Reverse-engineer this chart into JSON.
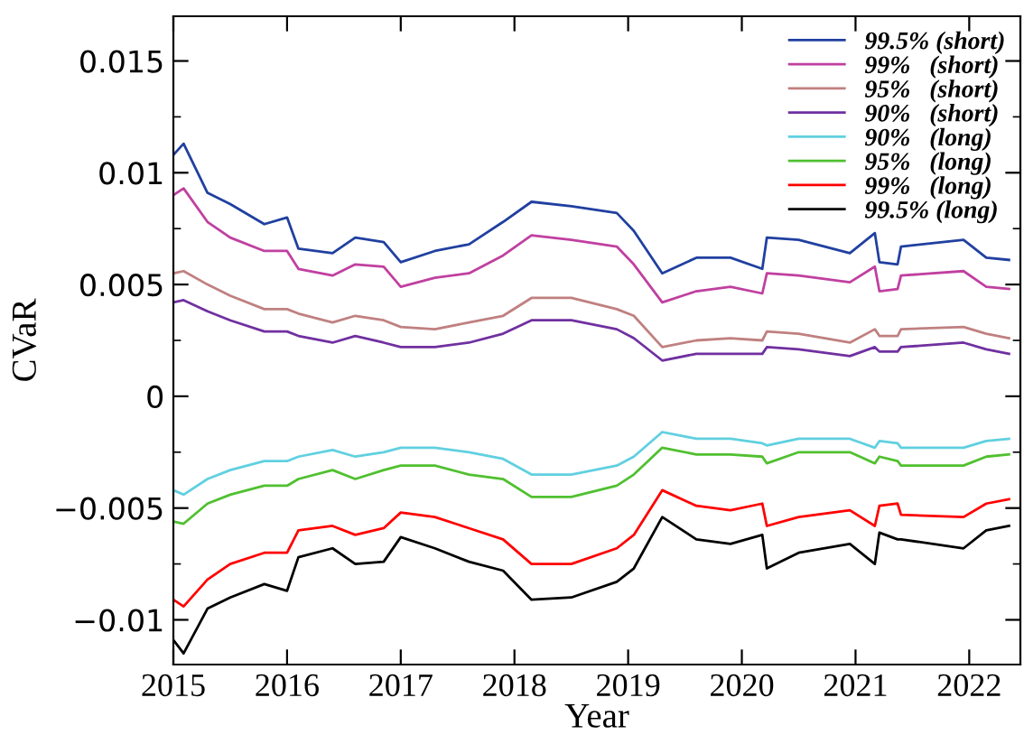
{
  "chart_data": {
    "type": "line",
    "xlabel": "Year",
    "ylabel": "CVaR",
    "x": [
      2015.0,
      2015.09,
      2015.3,
      2015.5,
      2015.8,
      2016.0,
      2016.1,
      2016.4,
      2016.6,
      2016.85,
      2017.0,
      2017.3,
      2017.6,
      2017.9,
      2018.15,
      2018.5,
      2018.9,
      2019.05,
      2019.3,
      2019.6,
      2019.9,
      2020.18,
      2020.22,
      2020.5,
      2020.95,
      2021.17,
      2021.21,
      2021.37,
      2021.4,
      2021.95,
      2022.15,
      2022.35
    ],
    "series": [
      {
        "name": "99.5% (short)",
        "color": "#2040a0",
        "values": [
          0.0108,
          0.0113,
          0.0091,
          0.0086,
          0.0077,
          0.008,
          0.0066,
          0.0064,
          0.0071,
          0.0069,
          0.006,
          0.0065,
          0.0068,
          0.0078,
          0.0087,
          0.0085,
          0.0082,
          0.0074,
          0.0055,
          0.0062,
          0.0062,
          0.0057,
          0.0071,
          0.007,
          0.0064,
          0.0073,
          0.006,
          0.0059,
          0.0067,
          0.007,
          0.0062,
          0.0061
        ]
      },
      {
        "name": "99%   (short)",
        "color": "#c040a0",
        "values": [
          0.009,
          0.0093,
          0.0078,
          0.0071,
          0.0065,
          0.0065,
          0.0057,
          0.0054,
          0.0059,
          0.0058,
          0.0049,
          0.0053,
          0.0055,
          0.0063,
          0.0072,
          0.007,
          0.0067,
          0.0059,
          0.0042,
          0.0047,
          0.0049,
          0.0046,
          0.0055,
          0.0054,
          0.0051,
          0.0058,
          0.0047,
          0.0048,
          0.0054,
          0.0056,
          0.0049,
          0.0048
        ]
      },
      {
        "name": "95%   (short)",
        "color": "#c08080",
        "values": [
          0.0055,
          0.0056,
          0.005,
          0.0045,
          0.0039,
          0.0039,
          0.0037,
          0.0033,
          0.0036,
          0.0034,
          0.0031,
          0.003,
          0.0033,
          0.0036,
          0.0044,
          0.0044,
          0.0039,
          0.0036,
          0.0022,
          0.0025,
          0.0026,
          0.0025,
          0.0029,
          0.0028,
          0.0024,
          0.003,
          0.0027,
          0.0027,
          0.003,
          0.0031,
          0.0028,
          0.0026
        ]
      },
      {
        "name": "90%   (short)",
        "color": "#7030a0",
        "values": [
          0.0042,
          0.0043,
          0.0038,
          0.0034,
          0.0029,
          0.0029,
          0.0027,
          0.0024,
          0.0027,
          0.0024,
          0.0022,
          0.0022,
          0.0024,
          0.0028,
          0.0034,
          0.0034,
          0.003,
          0.0026,
          0.0016,
          0.0019,
          0.0019,
          0.0019,
          0.0022,
          0.0021,
          0.0018,
          0.0022,
          0.002,
          0.002,
          0.0022,
          0.0024,
          0.0021,
          0.0019
        ]
      },
      {
        "name": "90%   (long)",
        "color": "#60d0e0",
        "values": [
          -0.0042,
          -0.0044,
          -0.0037,
          -0.0033,
          -0.0029,
          -0.0029,
          -0.0027,
          -0.0024,
          -0.0027,
          -0.0025,
          -0.0023,
          -0.0023,
          -0.0025,
          -0.0028,
          -0.0035,
          -0.0035,
          -0.0031,
          -0.0027,
          -0.0016,
          -0.0019,
          -0.0019,
          -0.0021,
          -0.0022,
          -0.0019,
          -0.0019,
          -0.0023,
          -0.002,
          -0.0021,
          -0.0023,
          -0.0023,
          -0.002,
          -0.0019
        ]
      },
      {
        "name": "95%   (long)",
        "color": "#50c030",
        "values": [
          -0.0056,
          -0.0057,
          -0.0048,
          -0.0044,
          -0.004,
          -0.004,
          -0.0037,
          -0.0033,
          -0.0037,
          -0.0033,
          -0.0031,
          -0.0031,
          -0.0035,
          -0.0037,
          -0.0045,
          -0.0045,
          -0.004,
          -0.0035,
          -0.0023,
          -0.0026,
          -0.0026,
          -0.0027,
          -0.003,
          -0.0025,
          -0.0025,
          -0.003,
          -0.0027,
          -0.0029,
          -0.0031,
          -0.0031,
          -0.0027,
          -0.0026
        ]
      },
      {
        "name": "99%   (long)",
        "color": "#ff0000",
        "values": [
          -0.0091,
          -0.0094,
          -0.0082,
          -0.0075,
          -0.007,
          -0.007,
          -0.006,
          -0.0058,
          -0.0062,
          -0.0059,
          -0.0052,
          -0.0054,
          -0.0059,
          -0.0064,
          -0.0075,
          -0.0075,
          -0.0068,
          -0.0062,
          -0.0042,
          -0.0049,
          -0.0051,
          -0.0048,
          -0.0058,
          -0.0054,
          -0.0051,
          -0.0058,
          -0.0049,
          -0.0048,
          -0.0053,
          -0.0054,
          -0.0048,
          -0.0046
        ]
      },
      {
        "name": "99.5% (long)",
        "color": "#000000",
        "values": [
          -0.0109,
          -0.0115,
          -0.0095,
          -0.009,
          -0.0084,
          -0.0087,
          -0.0072,
          -0.0068,
          -0.0075,
          -0.0074,
          -0.0063,
          -0.0068,
          -0.0074,
          -0.0078,
          -0.0091,
          -0.009,
          -0.0083,
          -0.0077,
          -0.0054,
          -0.0064,
          -0.0066,
          -0.0062,
          -0.0077,
          -0.007,
          -0.0066,
          -0.0075,
          -0.0061,
          -0.0064,
          -0.0064,
          -0.0068,
          -0.006,
          -0.0058
        ]
      }
    ],
    "xlim": [
      2015,
      2022.45
    ],
    "xticks": [
      2015,
      2016,
      2017,
      2018,
      2019,
      2020,
      2021,
      2022
    ],
    "ylim": [
      -0.012,
      0.017
    ],
    "yticks": [
      {
        "value": -0.01,
        "label": "−0.01"
      },
      {
        "value": -0.005,
        "label": "−0.005"
      },
      0,
      {
        "value": 0.005,
        "label": "0.005"
      },
      {
        "value": 0.01,
        "label": "0.01"
      },
      {
        "value": 0.015,
        "label": "0.015"
      }
    ],
    "legend": "top right",
    "grid": false
  }
}
